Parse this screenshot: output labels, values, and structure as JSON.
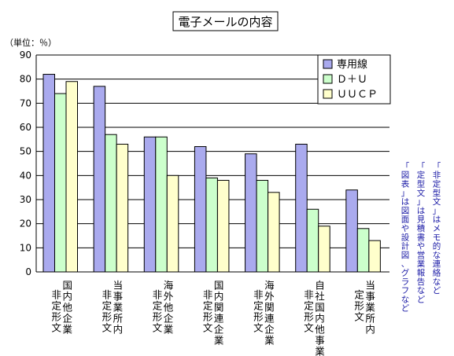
{
  "chart_data": {
    "type": "bar",
    "title": "電子メールの内容",
    "unit_label": "（単位：％）",
    "ylim": [
      0,
      90
    ],
    "yticks": [
      0,
      10,
      20,
      30,
      40,
      50,
      60,
      70,
      80,
      90
    ],
    "grid": true,
    "legend_position": "top-right",
    "categories": [
      {
        "lines": [
          "国内他企業",
          "非定形文"
        ]
      },
      {
        "lines": [
          "当事業所内",
          "非定形文"
        ]
      },
      {
        "lines": [
          "海外他企業",
          "非定形文"
        ]
      },
      {
        "lines": [
          "国内関連企業",
          "非定形文"
        ]
      },
      {
        "lines": [
          "海外関連企業",
          "非定形文"
        ]
      },
      {
        "lines": [
          "自社国内他事業所",
          "非定形文"
        ]
      },
      {
        "lines": [
          "当事業所内",
          "定形文"
        ]
      }
    ],
    "series": [
      {
        "name": "専用線",
        "color": "#aaaaee",
        "values": [
          82,
          77,
          56,
          52,
          49,
          53,
          34
        ]
      },
      {
        "name": "Ｄ＋Ｕ",
        "color": "#ccffcc",
        "values": [
          74,
          57,
          56,
          39,
          38,
          26,
          18
        ]
      },
      {
        "name": "ＵＵＣＰ",
        "color": "#ffffcc",
        "values": [
          79,
          53,
          40,
          38,
          33,
          19,
          13
        ]
      }
    ],
    "notes": [
      "「非定型文」はメモ的な連絡など",
      "「定型文」は見積書や営業報告など",
      "「図表」は図面や設計図、グラフなど"
    ]
  }
}
